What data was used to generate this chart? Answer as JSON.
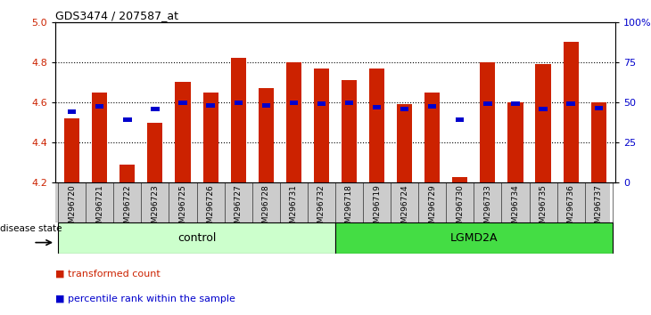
{
  "title": "GDS3474 / 207587_at",
  "samples": [
    "GSM296720",
    "GSM296721",
    "GSM296722",
    "GSM296723",
    "GSM296725",
    "GSM296726",
    "GSM296727",
    "GSM296728",
    "GSM296731",
    "GSM296732",
    "GSM296718",
    "GSM296719",
    "GSM296724",
    "GSM296729",
    "GSM296730",
    "GSM296733",
    "GSM296734",
    "GSM296735",
    "GSM296736",
    "GSM296737"
  ],
  "bar_values": [
    4.52,
    4.65,
    4.29,
    4.5,
    4.7,
    4.65,
    4.82,
    4.67,
    4.8,
    4.77,
    4.71,
    4.77,
    4.59,
    4.65,
    4.23,
    4.8,
    4.6,
    4.79,
    4.9,
    4.6
  ],
  "percentile_values": [
    4.555,
    4.58,
    4.515,
    4.565,
    4.6,
    4.585,
    4.6,
    4.585,
    4.6,
    4.595,
    4.6,
    4.575,
    4.565,
    4.58,
    4.515,
    4.595,
    4.595,
    4.565,
    4.595,
    4.57
  ],
  "control_count": 10,
  "lgmd_count": 10,
  "ylim_left": [
    4.2,
    5.0
  ],
  "ylim_right": [
    0,
    100
  ],
  "yticks_left": [
    4.2,
    4.4,
    4.6,
    4.8,
    5.0
  ],
  "yticks_right": [
    0,
    25,
    50,
    75,
    100
  ],
  "ytick_labels_right": [
    "0",
    "25",
    "50",
    "75",
    "100%"
  ],
  "bar_color": "#cc2200",
  "percentile_color": "#0000cc",
  "control_bg": "#ccffcc",
  "lgmd_bg": "#44dd44",
  "xlabel_bg": "#cccccc",
  "disease_state_label": "disease state",
  "control_label": "control",
  "lgmd_label": "LGMD2A",
  "legend_bar_label": "transformed count",
  "legend_pct_label": "percentile rank within the sample"
}
